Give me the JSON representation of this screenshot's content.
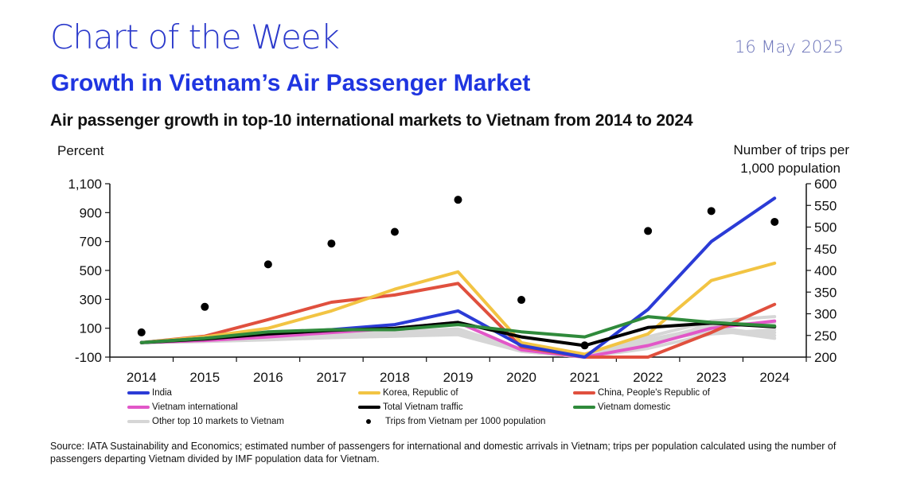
{
  "header": {
    "kicker": "Chart of the Week",
    "date": "16 May 2025",
    "headline": "Growth in Vietnam’s Air Passenger Market"
  },
  "source": "Source: IATA Sustainability and Economics; estimated number of passengers for international and domestic arrivals in Vietnam; trips per population calculated using the number of passengers departing Vietnam divided by IMF population data for Vietnam.",
  "colors": {
    "india": "#2b3bd6",
    "korea": "#f2c443",
    "china": "#e0503e",
    "vietnam_international": "#e257c8",
    "total": "#000000",
    "domestic": "#2f8a3b",
    "other": "#d6d6d6",
    "dots": "#000000"
  },
  "legend": [
    {
      "key": "india",
      "label": "India"
    },
    {
      "key": "korea",
      "label": "Korea, Republic of"
    },
    {
      "key": "china",
      "label": "China, People's Republic of"
    },
    {
      "key": "vietnam_international",
      "label": "Vietnam international"
    },
    {
      "key": "total",
      "label": "Total Vietnam traffic"
    },
    {
      "key": "domestic",
      "label": "Vietnam domestic"
    },
    {
      "key": "other",
      "label": "Other top 10 markets to Vietnam"
    },
    {
      "key": "dots",
      "label": "Trips from Vietnam per 1000 population"
    }
  ],
  "chart_data": {
    "type": "line",
    "title": "Air passenger growth in top-10 international markets to Vietnam from 2014 to 2024",
    "ylabel": "Percent",
    "y2label_line1": "Number of trips per",
    "y2label_line2": "1,000 population",
    "categories": [
      "2014",
      "2015",
      "2016",
      "2017",
      "2018",
      "2019",
      "2020",
      "2021",
      "2022",
      "2023",
      "2024"
    ],
    "ylim": [
      -100,
      1100
    ],
    "yticks": [
      "1,100",
      "900",
      "700",
      "500",
      "300",
      "100",
      "-100"
    ],
    "ytick_values": [
      1100,
      900,
      700,
      500,
      300,
      100,
      -100
    ],
    "y2lim": [
      200,
      600
    ],
    "y2ticks": [
      "600",
      "550",
      "500",
      "450",
      "400",
      "350",
      "300",
      "250",
      "200"
    ],
    "y2tick_values": [
      600,
      550,
      500,
      450,
      400,
      350,
      300,
      250,
      200
    ],
    "grid": false,
    "legend_position": "bottom",
    "other_series": [
      {
        "name": "Other top 10 markets to Vietnam",
        "values": [
          0,
          10,
          25,
          40,
          50,
          60,
          -60,
          -100,
          -40,
          60,
          90
        ]
      },
      {
        "name": "Other top 10 markets to Vietnam",
        "values": [
          0,
          12,
          30,
          50,
          60,
          70,
          -50,
          -95,
          0,
          80,
          70
        ]
      },
      {
        "name": "Other top 10 markets to Vietnam",
        "values": [
          0,
          15,
          35,
          55,
          70,
          80,
          -40,
          -90,
          20,
          110,
          50
        ]
      },
      {
        "name": "Other top 10 markets to Vietnam",
        "values": [
          0,
          10,
          28,
          45,
          60,
          75,
          -55,
          -100,
          -10,
          90,
          30
        ]
      },
      {
        "name": "Other top 10 markets to Vietnam",
        "values": [
          0,
          8,
          20,
          35,
          45,
          55,
          -60,
          -100,
          -30,
          140,
          110
        ]
      },
      {
        "name": "Other top 10 markets to Vietnam",
        "values": [
          0,
          14,
          32,
          60,
          75,
          95,
          -45,
          -95,
          40,
          150,
          180
        ]
      },
      {
        "name": "Other top 10 markets to Vietnam",
        "values": [
          0,
          12,
          30,
          50,
          65,
          85,
          -50,
          -100,
          10,
          120,
          140
        ]
      }
    ],
    "series": [
      {
        "key": "vietnam_international",
        "name": "Vietnam international",
        "values": [
          0,
          15,
          40,
          70,
          100,
          140,
          -50,
          -100,
          -20,
          100,
          150
        ]
      },
      {
        "key": "china",
        "name": "China, People's Republic of",
        "values": [
          0,
          45,
          160,
          280,
          330,
          410,
          -30,
          -100,
          -100,
          70,
          265
        ]
      },
      {
        "key": "korea",
        "name": "Korea, Republic of",
        "values": [
          0,
          40,
          100,
          220,
          370,
          490,
          0,
          -80,
          60,
          430,
          550
        ]
      },
      {
        "key": "india",
        "name": "India",
        "values": [
          0,
          30,
          65,
          90,
          125,
          220,
          -20,
          -100,
          230,
          700,
          1000
        ]
      },
      {
        "key": "total",
        "name": "Total Vietnam traffic",
        "values": [
          0,
          25,
          60,
          85,
          100,
          140,
          40,
          -20,
          105,
          135,
          110
        ]
      },
      {
        "key": "domestic",
        "name": "Vietnam domestic",
        "values": [
          0,
          30,
          75,
          90,
          90,
          125,
          75,
          40,
          180,
          140,
          115
        ]
      }
    ],
    "dots": {
      "name": "Trips from Vietnam per 1000 population",
      "axis": "right",
      "values": [
        257,
        316,
        414,
        462,
        489,
        563,
        332,
        227,
        491,
        537,
        512
      ]
    }
  }
}
